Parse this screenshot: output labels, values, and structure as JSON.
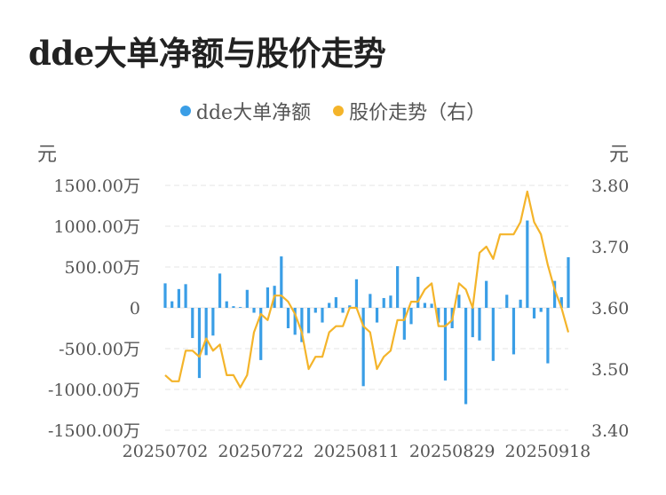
{
  "title": "dde大单净额与股价走势",
  "legend": [
    {
      "label": "dde大单净额",
      "color": "#3a9ee6"
    },
    {
      "label": "股价走势（右）",
      "color": "#f4b42a"
    }
  ],
  "units": {
    "left": "元",
    "right": "元"
  },
  "chart_data": {
    "type": "bar+line",
    "title": "dde大单净额与股价走势",
    "grid": true,
    "legend_position": "top-center",
    "x_ticks": [
      "20250702",
      "20250722",
      "20250811",
      "20250829",
      "20250918"
    ],
    "x_tick_indices": [
      0,
      14,
      28,
      42,
      56
    ],
    "left_axis": {
      "unit": "元",
      "range": [
        -1500,
        1500
      ],
      "ticks": [
        1500,
        1000,
        500,
        0,
        -500,
        -1000,
        -1500
      ],
      "tick_labels": [
        "1500.00万",
        "1000.00万",
        "500.00万",
        "0",
        "-500.00万",
        "-1000.00万",
        "-1500.00万"
      ]
    },
    "right_axis": {
      "unit": "元",
      "range": [
        3.4,
        3.8
      ],
      "ticks": [
        3.8,
        3.7,
        3.6,
        3.5,
        3.4
      ],
      "tick_labels": [
        "3.80",
        "3.70",
        "3.60",
        "3.50",
        "3.40"
      ]
    },
    "series": [
      {
        "name": "dde大单净额",
        "type": "bar",
        "axis": "left",
        "color": "#3a9ee6",
        "values": [
          300,
          80,
          230,
          290,
          -370,
          -860,
          -580,
          -340,
          420,
          80,
          20,
          10,
          220,
          -60,
          -640,
          250,
          270,
          630,
          -250,
          -330,
          -420,
          -310,
          -60,
          -180,
          60,
          130,
          -60,
          30,
          350,
          -960,
          170,
          -180,
          120,
          150,
          510,
          -390,
          -200,
          380,
          60,
          50,
          -180,
          -890,
          -250,
          160,
          -1180,
          -360,
          -400,
          330,
          -650,
          0,
          160,
          -570,
          100,
          1070,
          -130,
          -50,
          -680,
          330,
          130,
          620
        ]
      },
      {
        "name": "股价走势（右）",
        "type": "line",
        "axis": "right",
        "color": "#f4b42a",
        "values": [
          3.49,
          3.48,
          3.48,
          3.53,
          3.53,
          3.52,
          3.55,
          3.53,
          3.54,
          3.49,
          3.49,
          3.47,
          3.49,
          3.56,
          3.59,
          3.58,
          3.62,
          3.62,
          3.61,
          3.59,
          3.56,
          3.5,
          3.52,
          3.52,
          3.56,
          3.57,
          3.57,
          3.6,
          3.6,
          3.57,
          3.56,
          3.5,
          3.52,
          3.53,
          3.58,
          3.58,
          3.61,
          3.61,
          3.63,
          3.64,
          3.57,
          3.57,
          3.58,
          3.64,
          3.63,
          3.6,
          3.69,
          3.7,
          3.68,
          3.72,
          3.72,
          3.72,
          3.74,
          3.79,
          3.74,
          3.72,
          3.67,
          3.63,
          3.6,
          3.56
        ]
      }
    ]
  }
}
